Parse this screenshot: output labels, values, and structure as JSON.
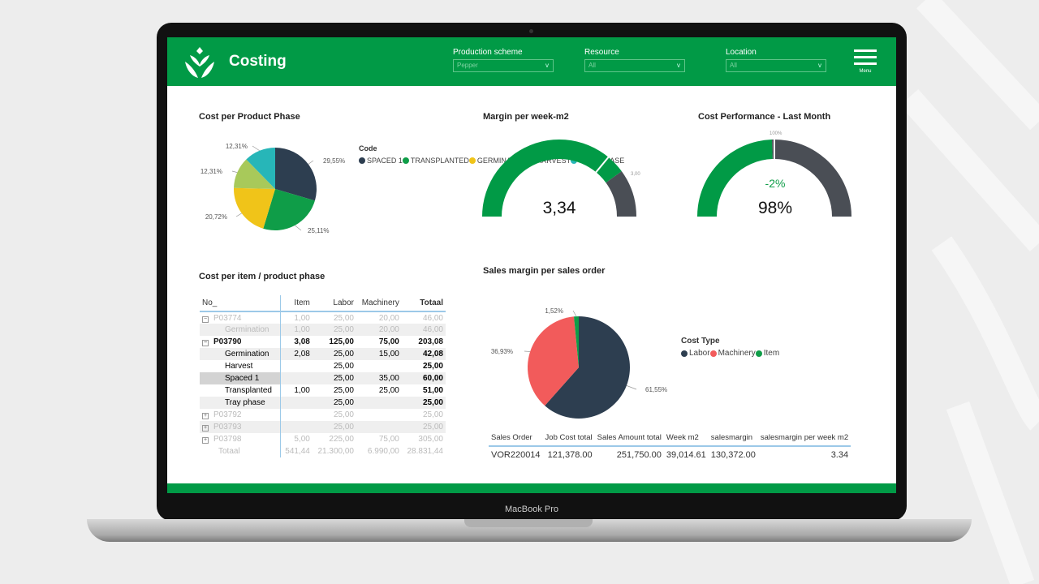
{
  "device_label": "MacBook Pro",
  "header": {
    "title": "Costing",
    "menu_label": "Menu",
    "filters": [
      {
        "label": "Production scheme",
        "value": "Pepper"
      },
      {
        "label": "Resource",
        "value": "All"
      },
      {
        "label": "Location",
        "value": "All"
      }
    ]
  },
  "colors": {
    "brand": "#019a46",
    "dark": "#2d3e50",
    "gray": "#4a4e55"
  },
  "chart_data": [
    {
      "type": "pie",
      "title": "Cost per Product Phase",
      "legend_title": "Code",
      "legend_position": "right",
      "slices": [
        {
          "name": "SPACED 1",
          "value": 29.55,
          "label": "29,55%",
          "color": "#2d3e50"
        },
        {
          "name": "TRANSPLANTED",
          "value": 25.11,
          "label": "25,11%",
          "color": "#0f9d48"
        },
        {
          "name": "GERMINATION",
          "value": 20.72,
          "label": "20,72%",
          "color": "#f0c419"
        },
        {
          "name": "HARVEST",
          "value": 12.31,
          "label": "12,31%",
          "color": "#a8c95a"
        },
        {
          "name": "TRAY PHASE",
          "value": 12.31,
          "label": "12,31%",
          "color": "#27b6b8"
        }
      ]
    },
    {
      "type": "gauge",
      "title": "Margin per week-m2",
      "value": 3.34,
      "value_label": "3,34",
      "target_label": "3,00",
      "value_fraction": 0.8,
      "target_fraction": 0.72
    },
    {
      "type": "gauge",
      "title": "Cost Performance - Last Month",
      "value_label": "98%",
      "delta_label": "-2%",
      "target_label": "100%",
      "value_fraction": 0.49,
      "target_fraction": 0.5
    },
    {
      "type": "pie",
      "title": "Sales margin per sales order",
      "legend_title": "Cost Type",
      "legend_position": "right",
      "slices": [
        {
          "name": "Labor",
          "value": 61.55,
          "label": "61,55%",
          "color": "#2d3e50"
        },
        {
          "name": "Machinery",
          "value": 36.93,
          "label": "36,93%",
          "color": "#f25b5b"
        },
        {
          "name": "Item",
          "value": 1.52,
          "label": "1,52%",
          "color": "#0f9d48"
        }
      ]
    }
  ],
  "cost_table": {
    "title": "Cost per item / product phase",
    "columns": [
      "No_",
      "Item",
      "Labor",
      "Machinery",
      "Totaal"
    ],
    "rows": [
      {
        "cells": [
          "P03774",
          "1,00",
          "25,00",
          "20,00",
          "46,00"
        ],
        "style": "faded",
        "toggle": "−"
      },
      {
        "cells": [
          "Germination",
          "1,00",
          "25,00",
          "20,00",
          "46,00"
        ],
        "style": "faded shade child"
      },
      {
        "cells": [
          "P03790",
          "3,08",
          "125,00",
          "75,00",
          "203,08"
        ],
        "style": "bold",
        "toggle": "−"
      },
      {
        "cells": [
          "Germination",
          "2,08",
          "25,00",
          "15,00",
          "42,08"
        ],
        "style": "shade child"
      },
      {
        "cells": [
          "Harvest",
          "",
          "25,00",
          "",
          "25,00"
        ],
        "style": "child"
      },
      {
        "cells": [
          "Spaced 1",
          "",
          "25,00",
          "35,00",
          "60,00"
        ],
        "style": "shade sel child"
      },
      {
        "cells": [
          "Transplanted",
          "1,00",
          "25,00",
          "25,00",
          "51,00"
        ],
        "style": "child"
      },
      {
        "cells": [
          "Tray phase",
          "",
          "25,00",
          "",
          "25,00"
        ],
        "style": "shade child"
      },
      {
        "cells": [
          "P03792",
          "",
          "25,00",
          "",
          "25,00"
        ],
        "style": "faded",
        "toggle": "+"
      },
      {
        "cells": [
          "P03793",
          "",
          "25,00",
          "",
          "25,00"
        ],
        "style": "faded shade",
        "toggle": "+"
      },
      {
        "cells": [
          "P03798",
          "5,00",
          "225,00",
          "75,00",
          "305,00"
        ],
        "style": "faded",
        "toggle": "+"
      },
      {
        "cells": [
          "Totaal",
          "541,44",
          "21.300,00",
          "6.990,00",
          "28.831,44"
        ],
        "style": "faded"
      }
    ]
  },
  "sales_table": {
    "columns": [
      "Sales Order",
      "Job Cost total",
      "Sales Amount total",
      "Week m2",
      "salesmargin",
      "salesmargin per week m2"
    ],
    "rows": [
      [
        "VOR220014",
        "121,378.00",
        "251,750.00",
        "39,014.61",
        "130,372.00",
        "3.34"
      ]
    ]
  }
}
